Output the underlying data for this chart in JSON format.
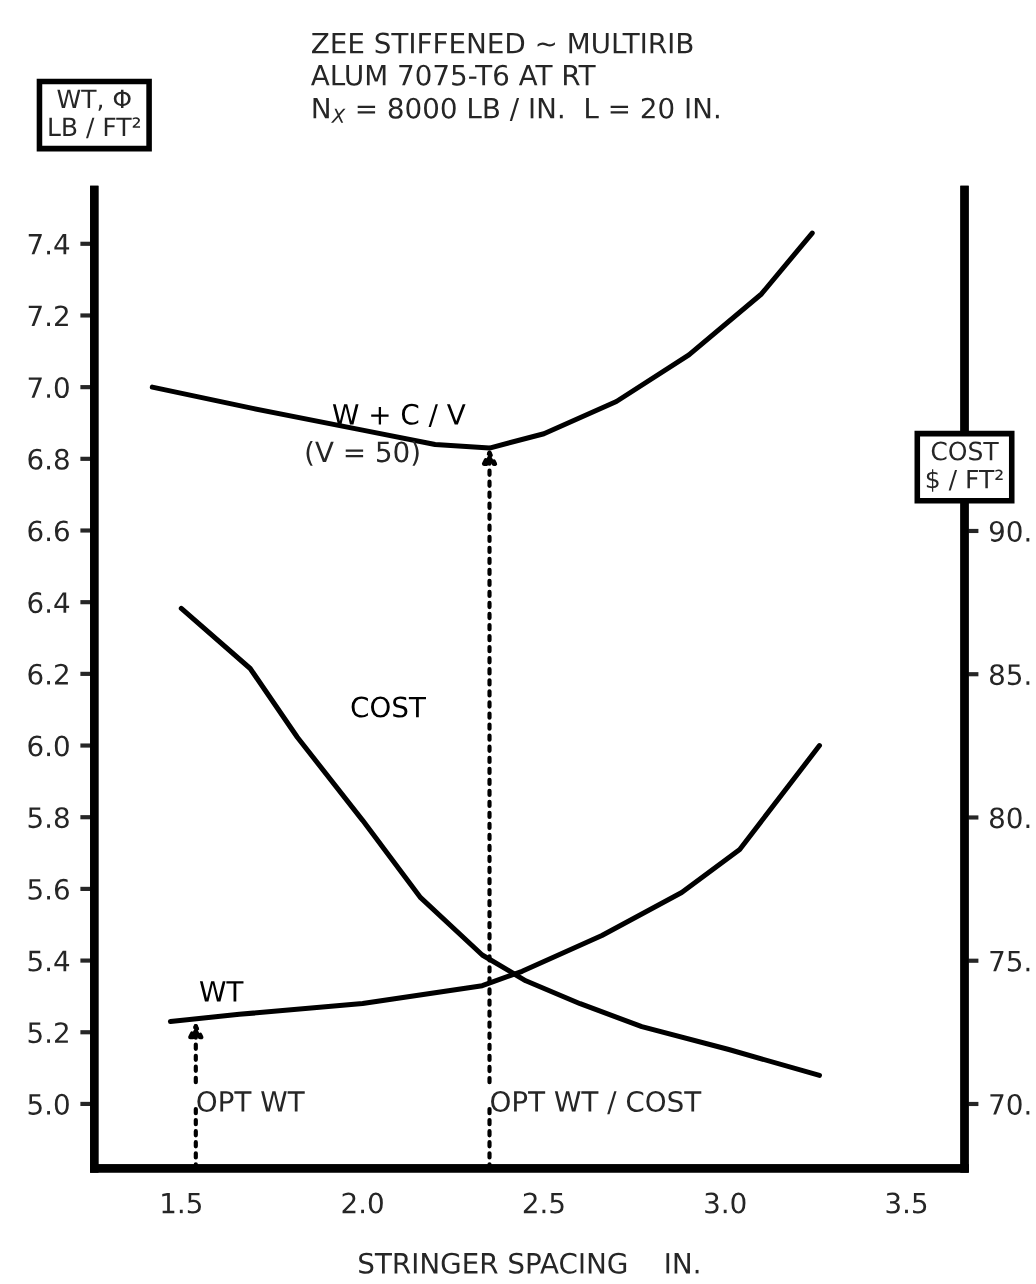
{
  "chart_data": {
    "type": "line",
    "title": "ZEE STIFFENED ~ MULTIRIB",
    "subtitle": "ALUM 7075-T6 AT RT\nN$_{X}$ = 8000 LB / IN.  L = 20 IN.",
    "xlabel": "STRINGER SPACING    IN.",
    "ylabel": "WT, Φ\nLB / FT²",
    "y2label": "COST\n$ / FT²",
    "xlim": [
      1.26,
      3.66
    ],
    "xticks": [
      1.5,
      {
        "value": 2,
        "label": "2.0"
      },
      2.5,
      {
        "value": 3,
        "label": "3.0"
      },
      3.5
    ],
    "ylim": [
      4.82,
      7.55
    ],
    "yticks": [
      {
        "value": 5,
        "label": "5.0"
      },
      5.2,
      5.4,
      5.6,
      5.8,
      {
        "value": 6,
        "label": "6.0"
      },
      6.2,
      6.4,
      6.6,
      6.8,
      {
        "value": 7,
        "label": "7.0"
      },
      7.2,
      7.4
    ],
    "y2lim": [
      67.75,
      101.9
    ],
    "y2ticks": [
      {
        "value": 70,
        "label": "70."
      },
      {
        "value": 75,
        "label": "75."
      },
      {
        "value": 80,
        "label": "80."
      },
      {
        "value": 85,
        "label": "85."
      },
      {
        "value": 90,
        "label": "90."
      }
    ],
    "grid": false,
    "marker": "none",
    "line_style": "solid",
    "series": [
      {
        "name": "W + C / V",
        "color": "#000000",
        "x": [
          1.42,
          1.7,
          2.0,
          2.2,
          2.35,
          2.5,
          2.7,
          2.9,
          3.1,
          3.24
        ],
        "values": [
          7.0,
          6.94,
          6.88,
          6.84,
          6.83,
          6.87,
          6.96,
          7.09,
          7.26,
          7.43
        ]
      },
      {
        "name": "COST",
        "color": "#000000",
        "axis": "y2",
        "x": [
          1.5,
          1.69,
          1.82,
          2.0,
          2.16,
          2.33,
          2.45,
          2.6,
          2.77,
          3.01,
          3.26
        ],
        "values": [
          87.3,
          85.2,
          82.8,
          79.9,
          77.2,
          75.2,
          74.3,
          73.5,
          72.7,
          71.9,
          71.0
        ]
      },
      {
        "name": "WT",
        "color": "#000000",
        "x": [
          1.47,
          1.66,
          2.0,
          2.33,
          2.44,
          2.66,
          2.88,
          3.04,
          3.26
        ],
        "values": [
          5.23,
          5.25,
          5.28,
          5.33,
          5.37,
          5.47,
          5.59,
          5.71,
          6.0
        ]
      }
    ],
    "annotations": [
      "(V = 50)",
      {
        "text": "OPT WT",
        "x": 1.54,
        "y": 5.23
      },
      {
        "text": "OPT WT / COST",
        "x": 2.35,
        "y": 6.83
      }
    ]
  }
}
